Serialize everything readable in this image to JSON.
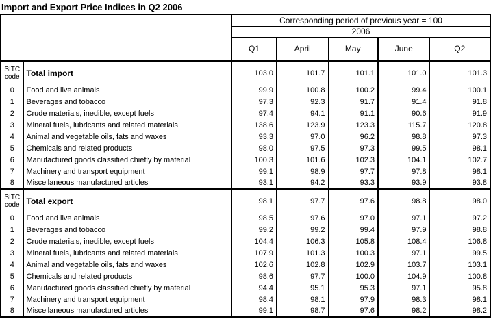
{
  "title": "Import and Export Price Indices in Q2 2006",
  "colors": {
    "border": "#000000",
    "background": "#ffffff",
    "text": "#000000"
  },
  "table": {
    "header": {
      "basis": "Corresponding period of previous year = 100",
      "year": "2006",
      "periods": [
        "Q1",
        "April",
        "May",
        "June",
        "Q2"
      ],
      "sitc_line1": "SITC",
      "sitc_line2": "code"
    },
    "sections": [
      {
        "name": "import",
        "total_label": "Total import",
        "total_values": [
          "103.0",
          "101.7",
          "101.1",
          "101.0",
          "101.3"
        ],
        "rows": [
          {
            "code": "0",
            "label": "Food and live animals",
            "values": [
              "99.9",
              "100.8",
              "100.2",
              "99.4",
              "100.1"
            ]
          },
          {
            "code": "1",
            "label": "Beverages and tobacco",
            "values": [
              "97.3",
              "92.3",
              "91.7",
              "91.4",
              "91.8"
            ]
          },
          {
            "code": "2",
            "label": "Crude materials, inedible, except fuels",
            "values": [
              "97.4",
              "94.1",
              "91.1",
              "90.6",
              "91.9"
            ]
          },
          {
            "code": "3",
            "label": "Mineral fuels, lubricants and related materials",
            "values": [
              "138.6",
              "123.9",
              "123.3",
              "115.7",
              "120.8"
            ]
          },
          {
            "code": "4",
            "label": "Animal and vegetable oils, fats and waxes",
            "values": [
              "93.3",
              "97.0",
              "96.2",
              "98.8",
              "97.3"
            ]
          },
          {
            "code": "5",
            "label": "Chemicals and related products",
            "values": [
              "98.0",
              "97.5",
              "97.3",
              "99.5",
              "98.1"
            ]
          },
          {
            "code": "6",
            "label": "Manufactured goods classified chiefly by material",
            "values": [
              "100.3",
              "101.6",
              "102.3",
              "104.1",
              "102.7"
            ]
          },
          {
            "code": "7",
            "label": "Machinery and transport equipment",
            "values": [
              "99.1",
              "98.9",
              "97.7",
              "97.8",
              "98.1"
            ]
          },
          {
            "code": "8",
            "label": "Miscellaneous manufactured articles",
            "values": [
              "93.1",
              "94.2",
              "93.3",
              "93.9",
              "93.8"
            ]
          }
        ]
      },
      {
        "name": "export",
        "total_label": "Total export",
        "total_values": [
          "98.1",
          "97.7",
          "97.6",
          "98.8",
          "98.0"
        ],
        "rows": [
          {
            "code": "0",
            "label": "Food and live animals",
            "values": [
              "98.5",
              "97.6",
              "97.0",
              "97.1",
              "97.2"
            ]
          },
          {
            "code": "1",
            "label": "Beverages and tobacco",
            "values": [
              "99.2",
              "99.2",
              "99.4",
              "97.9",
              "98.8"
            ]
          },
          {
            "code": "2",
            "label": "Crude materials, inedible, except fuels",
            "values": [
              "104.4",
              "106.3",
              "105.8",
              "108.4",
              "106.8"
            ]
          },
          {
            "code": "3",
            "label": "Mineral fuels, lubricants and related materials",
            "values": [
              "107.9",
              "101.3",
              "100.3",
              "97.1",
              "99.5"
            ]
          },
          {
            "code": "4",
            "label": "Animal and vegetable oils, fats and waxes",
            "values": [
              "102.6",
              "102.8",
              "102.9",
              "103.7",
              "103.1"
            ]
          },
          {
            "code": "5",
            "label": "Chemicals and related products",
            "values": [
              "98.6",
              "97.7",
              "100.0",
              "104.9",
              "100.8"
            ]
          },
          {
            "code": "6",
            "label": "Manufactured goods classified chiefly by material",
            "values": [
              "94.4",
              "95.1",
              "95.3",
              "97.1",
              "95.8"
            ]
          },
          {
            "code": "7",
            "label": "Machinery and transport equipment",
            "values": [
              "98.4",
              "98.1",
              "97.9",
              "98.3",
              "98.1"
            ]
          },
          {
            "code": "8",
            "label": "Miscellaneous manufactured articles",
            "values": [
              "99.1",
              "98.7",
              "97.6",
              "98.2",
              "98.2"
            ]
          }
        ]
      }
    ]
  }
}
